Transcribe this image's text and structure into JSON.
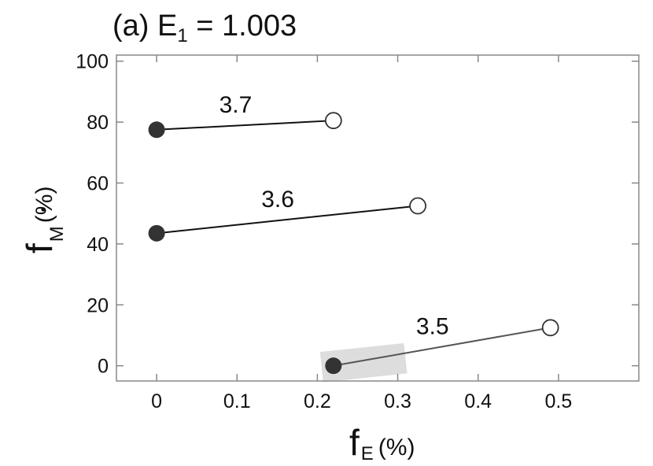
{
  "chart_data": {
    "type": "line",
    "title": {
      "prefix": "(a) E",
      "subscript": "1",
      "suffix": " = 1.003"
    },
    "xlabel": {
      "main": "f",
      "sub": "E",
      "unit": "(%)"
    },
    "ylabel": {
      "main": "f",
      "sub": "M",
      "unit": "(%)"
    },
    "xlim": [
      -0.05,
      0.6
    ],
    "ylim": [
      -5,
      102
    ],
    "xticks": [
      0,
      0.1,
      0.2,
      0.3,
      0.4,
      0.5
    ],
    "xtick_labels": [
      "0",
      "0.1",
      "0.2",
      "0.3",
      "0.4",
      "0.5"
    ],
    "yticks": [
      0,
      20,
      40,
      60,
      80,
      100
    ],
    "ytick_labels": [
      "0",
      "20",
      "40",
      "60",
      "80",
      "100"
    ],
    "grid": false,
    "series": [
      {
        "label": "3.7",
        "start": [
          0.0,
          77.5
        ],
        "end": [
          0.22,
          80.5
        ],
        "color": "#111111"
      },
      {
        "label": "3.6",
        "start": [
          0.0,
          43.5
        ],
        "end": [
          0.325,
          52.5
        ],
        "color": "#111111"
      },
      {
        "label": "3.5",
        "start": [
          0.22,
          0.0
        ],
        "end": [
          0.49,
          12.5
        ],
        "color": "#555555"
      }
    ],
    "highlight": {
      "x": [
        0.205,
        0.31
      ],
      "y": [
        -4,
        6
      ],
      "color": "#dddddd"
    },
    "marker_legend": {
      "start": "filled-circle",
      "end": "open-circle"
    }
  }
}
